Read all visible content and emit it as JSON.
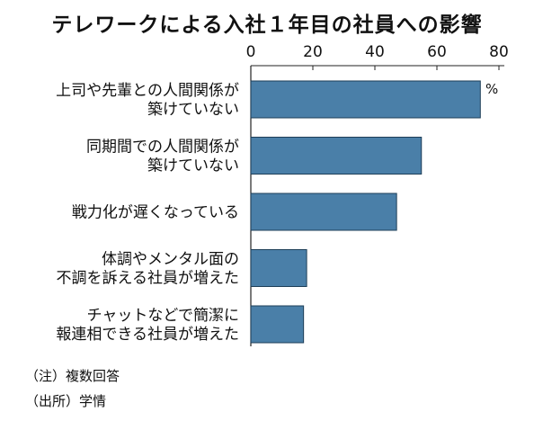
{
  "chart_data": {
    "type": "bar",
    "orientation": "horizontal",
    "title": "テレワークによる入社１年目の社員への影響",
    "unit": "%",
    "xlim": [
      0,
      80
    ],
    "ticks": [
      "0",
      "20",
      "40",
      "60",
      "80"
    ],
    "tick_values": [
      0,
      20,
      40,
      60,
      80
    ],
    "grid": false,
    "bar_color": "#4a7fa8",
    "categories": [
      [
        "上司や先輩との人間関係が",
        "築けていない"
      ],
      [
        "同期間での人間関係が",
        "築けていない"
      ],
      [
        "戦力化が遅くなっている"
      ],
      [
        "体調やメンタル面の",
        "不調を訴える社員が増えた"
      ],
      [
        "チャットなどで簡潔に",
        "報連相できる社員が増えた"
      ]
    ],
    "values": [
      74,
      55,
      47,
      18,
      17
    ]
  },
  "notes": {
    "note1": "（注）複数回答",
    "note2": "（出所）学情"
  }
}
